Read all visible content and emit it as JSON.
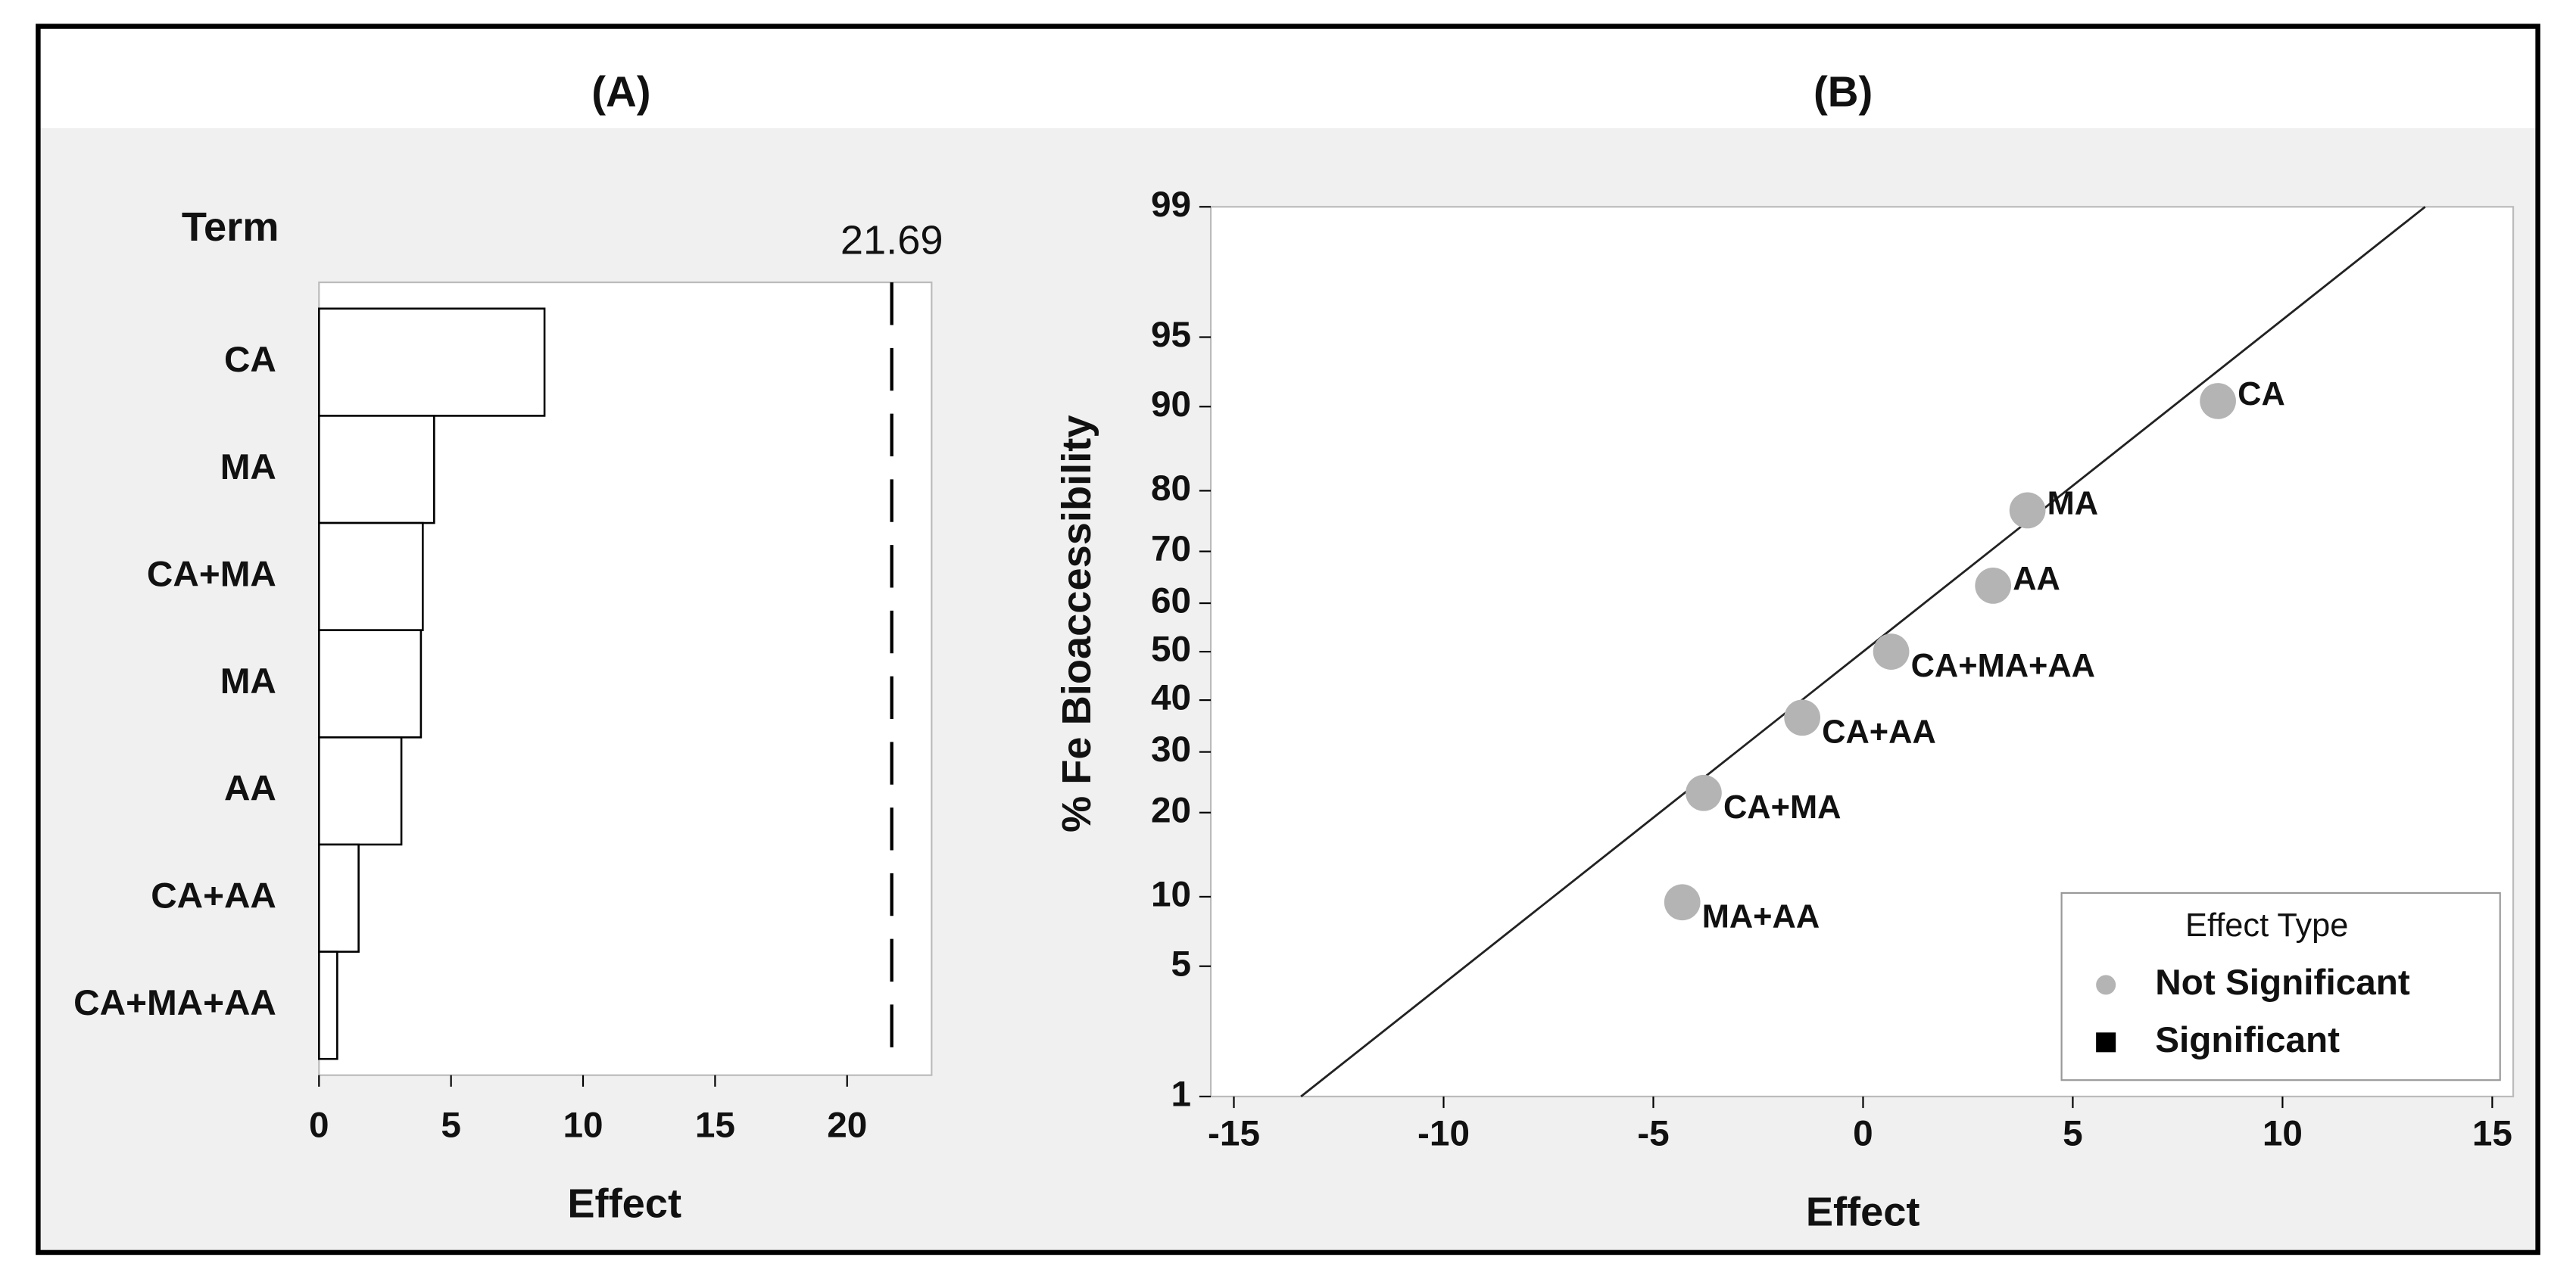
{
  "chart_data": [
    {
      "type": "bar",
      "orientation": "horizontal",
      "title": "(A)",
      "y_label": "Term",
      "x_label": "Effect",
      "categories": [
        "CA",
        "MA",
        "CA+MA",
        "MA",
        "AA",
        "CA+AA",
        "CA+MA+AA"
      ],
      "values": [
        8.54,
        4.36,
        3.93,
        3.86,
        3.12,
        1.5,
        0.69
      ],
      "color": "#ffffff",
      "edgecolor": "#000000",
      "xlim": [
        0,
        23.2
      ],
      "xticks": [
        0,
        5,
        10,
        15,
        20
      ],
      "reference_line": 21.69
    },
    {
      "type": "scatter",
      "title": "(B)",
      "x_label": "Effect",
      "y_label": "% Fe Bioaccessibility",
      "yscale": "probability",
      "xlim": [
        -15.55,
        15.5
      ],
      "xticks": [
        -15,
        -10,
        -5,
        0,
        5,
        10,
        15
      ],
      "ylim": [
        1,
        99
      ],
      "yticks": [
        1,
        5,
        10,
        20,
        30,
        40,
        50,
        60,
        70,
        80,
        90,
        95,
        99
      ],
      "fit_line": {
        "x": [
          -13.4,
          13.4
        ],
        "y": [
          1,
          99
        ]
      },
      "legend_title": "Effect Type",
      "legend": "lower right",
      "series": [
        {
          "name": "Not Significant",
          "color": "#b4b4b4",
          "marker": "circle",
          "x": [
            8.46,
            3.92,
            3.1,
            0.67,
            -1.45,
            -3.8,
            -4.31
          ],
          "values": [
            90.5,
            77,
            63.5,
            50,
            36.5,
            23,
            9.5
          ],
          "labels": [
            "CA",
            "MA",
            "AA",
            "CA+MA+AA",
            "CA+AA",
            "CA+MA",
            "MA+AA"
          ]
        },
        {
          "name": "Significant",
          "color": "#000000",
          "marker": "square",
          "x": [],
          "values": [],
          "labels": []
        }
      ]
    }
  ]
}
